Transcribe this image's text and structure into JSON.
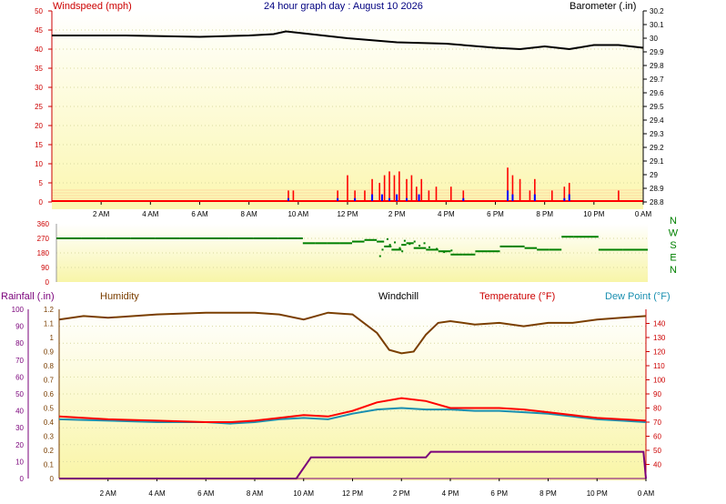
{
  "header": {
    "windspeed_label": "Windspeed (mph)",
    "title": "24 hour graph day : August 10 2026",
    "barometer_label": "Barometer (.in)"
  },
  "bottom_labels": {
    "rainfall": "Rainfall (.in)",
    "humidity": "Humidity",
    "windchill": "Windchill",
    "temperature": "Temperature (°F)",
    "dewpoint": "Dew Point (°F)"
  },
  "colors": {
    "windspeed": "#ff0000",
    "gust": "#0000ff",
    "barometer": "#000000",
    "wind_direction": "#008000",
    "humidity": "#7a3e00",
    "temperature": "#ff0000",
    "dewpoint": "#1a8fb0",
    "rainfall": "#7a007a",
    "humidity_label": "#7a3e00",
    "rainfall_label": "#7a007a",
    "temperature_label": "#cc0000",
    "dewpoint_label": "#1a8fb0"
  },
  "x_ticks": [
    "2 AM",
    "4 AM",
    "6 AM",
    "8 AM",
    "10 AM",
    "12 PM",
    "2 PM",
    "4 PM",
    "6 PM",
    "8 PM",
    "10 PM",
    "0 AM"
  ],
  "chart_data": [
    {
      "type": "line",
      "name": "wind",
      "series": [
        {
          "name": "Windspeed (mph)",
          "color": "#ff0000",
          "x_hours": [
            9.6,
            9.8,
            11.6,
            12.0,
            12.3,
            12.7,
            13.0,
            13.3,
            13.5,
            13.7,
            13.9,
            14.1,
            14.4,
            14.6,
            14.8,
            15.0,
            15.3,
            15.6,
            16.2,
            16.7,
            18.5,
            18.7,
            19.0,
            19.4,
            19.6,
            20.3,
            20.8,
            21.0,
            23.0
          ],
          "values": [
            3,
            3,
            3,
            7,
            3,
            3,
            6,
            5,
            7,
            8,
            7,
            8,
            6,
            7,
            4,
            6,
            3,
            4,
            4,
            3,
            9,
            7,
            6,
            3,
            6,
            3,
            4,
            5,
            3
          ]
        },
        {
          "name": "Gust",
          "color": "#0000ff",
          "x_hours": [
            9.6,
            11.6,
            12.3,
            13.0,
            13.4,
            13.7,
            14.0,
            14.4,
            14.9,
            16.7,
            18.5,
            18.7,
            19.6,
            20.8,
            21.0
          ],
          "values": [
            1,
            1,
            1,
            2,
            2,
            1,
            2,
            1,
            2,
            1,
            3,
            2,
            2,
            1,
            2
          ]
        },
        {
          "name": "Barometer (.in)",
          "color": "#000000",
          "axis": "right",
          "x_hours": [
            0,
            3,
            6,
            8,
            9,
            9.5,
            10,
            11,
            12,
            14,
            16,
            18,
            19,
            20,
            21,
            22,
            23,
            24
          ],
          "values": [
            30.02,
            30.02,
            30.01,
            30.02,
            30.03,
            30.05,
            30.04,
            30.02,
            30.0,
            29.97,
            29.96,
            29.93,
            29.92,
            29.94,
            29.92,
            29.95,
            29.95,
            29.93
          ]
        }
      ],
      "xlabel": "",
      "ylabel": "Windspeed (mph)",
      "ylim": [
        0,
        50
      ],
      "y2lim": [
        28.8,
        30.2
      ]
    },
    {
      "type": "scatter",
      "name": "wind direction",
      "series": [
        {
          "name": "",
          "color": "#008000",
          "x_hours": [
            0,
            1,
            2,
            3,
            4,
            5,
            6,
            7,
            8,
            9,
            9.8,
            10,
            10.5,
            11,
            11.5,
            12,
            12.5,
            13,
            13.3,
            13.6,
            14,
            14.2,
            14.5,
            15,
            15.5,
            16,
            16.5,
            17,
            17.5,
            18,
            18.5,
            19,
            19.5,
            20,
            20.5,
            21,
            22,
            23,
            24
          ],
          "values": [
            270,
            270,
            270,
            270,
            270,
            270,
            270,
            270,
            270,
            270,
            270,
            240,
            240,
            240,
            240,
            250,
            260,
            250,
            220,
            200,
            230,
            240,
            210,
            200,
            190,
            170,
            170,
            190,
            190,
            220,
            220,
            210,
            200,
            200,
            280,
            280,
            200,
            200,
            200
          ]
        }
      ],
      "ytick_labels": [
        "360",
        "270",
        "180",
        "90",
        "0"
      ],
      "compass": [
        "N",
        "W",
        "S",
        "E",
        "N"
      ],
      "ylim": [
        0,
        360
      ]
    },
    {
      "type": "line",
      "name": "temperature, humidity, dew point, rainfall",
      "series": [
        {
          "name": "Humidity",
          "color": "#7a3e00",
          "x_hours": [
            0,
            1,
            2,
            4,
            6,
            8,
            9,
            10,
            11,
            12,
            13,
            13.5,
            14,
            14.5,
            15,
            15.5,
            16,
            17,
            18,
            19,
            20,
            21,
            22,
            23,
            24
          ],
          "values": [
            94,
            96,
            95,
            97,
            98,
            98,
            97,
            94,
            98,
            97,
            86,
            76,
            74,
            75,
            85,
            92,
            93,
            91,
            92,
            90,
            92,
            92,
            94,
            95,
            96
          ]
        },
        {
          "name": "Temperature (°F)",
          "color": "#ff0000",
          "x_hours": [
            0,
            2,
            4,
            6,
            7,
            8,
            9,
            10,
            11,
            12,
            13,
            14,
            15,
            16,
            17,
            18,
            19,
            20,
            21,
            22,
            23,
            24
          ],
          "values": [
            74,
            72,
            71,
            70,
            70,
            71,
            73,
            75,
            74,
            78,
            84,
            87,
            85,
            80,
            80,
            80,
            79,
            77,
            75,
            73,
            72,
            71
          ]
        },
        {
          "name": "Dew Point (°F)",
          "color": "#1a8fb0",
          "x_hours": [
            0,
            2,
            4,
            6,
            7,
            8,
            9,
            10,
            11,
            12,
            13,
            14,
            15,
            16,
            17,
            18,
            19,
            20,
            21,
            22,
            23,
            24
          ],
          "values": [
            72,
            71,
            70,
            70,
            69,
            70,
            72,
            73,
            72,
            76,
            79,
            80,
            79,
            79,
            78,
            78,
            77,
            76,
            74,
            72,
            71,
            70
          ]
        },
        {
          "name": "Rainfall (.in)",
          "color": "#7a007a",
          "x_hours": [
            0,
            9.7,
            10.3,
            11,
            15,
            15.2,
            23.9,
            24
          ],
          "values": [
            0,
            0,
            0.15,
            0.15,
            0.15,
            0.19,
            0.19,
            0
          ]
        }
      ],
      "ylim_left_rain": [
        0,
        1.2
      ],
      "ylim_left_pct": [
        0,
        100
      ],
      "ylim_right_temp": [
        30,
        150
      ]
    }
  ]
}
